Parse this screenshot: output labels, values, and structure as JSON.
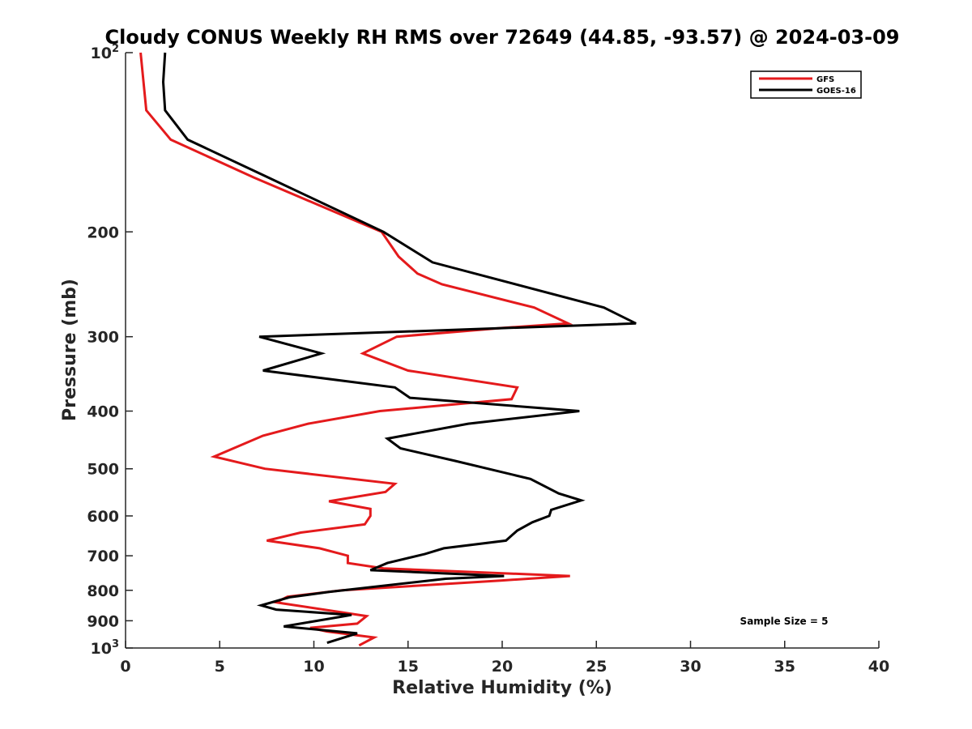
{
  "chart_data": {
    "type": "line",
    "title": "Cloudy CONUS Weekly RH RMS over 72649 (44.85, -93.57) @ 2024-03-09",
    "xlabel": "Relative Humidity (%)",
    "ylabel": "Pressure (mb)",
    "xlim": [
      0,
      40
    ],
    "ylim": [
      100,
      1000
    ],
    "y_scale": "log",
    "y_reversed": true,
    "grid": false,
    "legend_placement": "top-right",
    "x_ticks": [
      0,
      5,
      10,
      15,
      20,
      25,
      30,
      35,
      40
    ],
    "x_tick_labels": [
      "0",
      "5",
      "10",
      "15",
      "20",
      "25",
      "30",
      "35",
      "40"
    ],
    "y_ticks": [
      100,
      200,
      300,
      400,
      500,
      600,
      700,
      800,
      900,
      1000
    ],
    "y_tick_labels": [
      {
        "base": "10",
        "sup": "2"
      },
      {
        "base": "200",
        "sup": ""
      },
      {
        "base": "300",
        "sup": ""
      },
      {
        "base": "400",
        "sup": ""
      },
      {
        "base": "500",
        "sup": ""
      },
      {
        "base": "600",
        "sup": ""
      },
      {
        "base": "700",
        "sup": ""
      },
      {
        "base": "800",
        "sup": ""
      },
      {
        "base": "900",
        "sup": ""
      },
      {
        "base": "10",
        "sup": "3"
      }
    ],
    "series": [
      {
        "name": "GFS",
        "color": "#e41a1c",
        "points": [
          [
            0.8,
            100
          ],
          [
            1.1,
            125
          ],
          [
            2.4,
            140
          ],
          [
            6.8,
            162
          ],
          [
            13.6,
            200
          ],
          [
            14.5,
            220
          ],
          [
            15.5,
            235
          ],
          [
            16.8,
            245
          ],
          [
            21.7,
            268
          ],
          [
            23.5,
            285
          ],
          [
            20.0,
            290
          ],
          [
            14.4,
            300
          ],
          [
            12.6,
            320
          ],
          [
            15.0,
            342
          ],
          [
            20.8,
            365
          ],
          [
            20.5,
            382
          ],
          [
            13.5,
            400
          ],
          [
            9.7,
            420
          ],
          [
            7.3,
            440
          ],
          [
            4.7,
            477
          ],
          [
            7.4,
            500
          ],
          [
            14.3,
            530
          ],
          [
            13.8,
            547
          ],
          [
            10.8,
            567
          ],
          [
            13.0,
            584
          ],
          [
            13.0,
            600
          ],
          [
            12.7,
            620
          ],
          [
            9.3,
            640
          ],
          [
            7.5,
            660
          ],
          [
            10.3,
            680
          ],
          [
            11.8,
            700
          ],
          [
            11.8,
            720
          ],
          [
            13.7,
            735
          ],
          [
            23.6,
            757
          ],
          [
            20.0,
            770
          ],
          [
            11.5,
            800
          ],
          [
            8.6,
            820
          ],
          [
            8.0,
            838
          ],
          [
            8.4,
            842
          ],
          [
            12.8,
            884
          ],
          [
            12.3,
            910
          ],
          [
            9.8,
            925
          ],
          [
            10.7,
            938
          ],
          [
            13.2,
            960
          ],
          [
            12.4,
            990
          ]
        ]
      },
      {
        "name": "GOES-16",
        "color": "#000000",
        "points": [
          [
            2.1,
            100
          ],
          [
            2.0,
            112
          ],
          [
            2.1,
            125
          ],
          [
            3.3,
            140
          ],
          [
            7.2,
            160
          ],
          [
            13.7,
            200
          ],
          [
            16.3,
            225
          ],
          [
            25.4,
            268
          ],
          [
            27.1,
            285
          ],
          [
            7.1,
            300
          ],
          [
            10.4,
            320
          ],
          [
            7.3,
            342
          ],
          [
            14.3,
            365
          ],
          [
            15.1,
            380
          ],
          [
            24.1,
            400
          ],
          [
            18.2,
            420
          ],
          [
            13.9,
            445
          ],
          [
            14.6,
            462
          ],
          [
            17.5,
            485
          ],
          [
            21.5,
            520
          ],
          [
            23.0,
            550
          ],
          [
            24.2,
            565
          ],
          [
            22.6,
            586
          ],
          [
            22.5,
            600
          ],
          [
            21.6,
            615
          ],
          [
            20.8,
            635
          ],
          [
            20.2,
            660
          ],
          [
            16.9,
            680
          ],
          [
            15.9,
            695
          ],
          [
            13.9,
            720
          ],
          [
            13.0,
            740
          ],
          [
            20.1,
            757
          ],
          [
            17.0,
            765
          ],
          [
            10.8,
            805
          ],
          [
            8.7,
            822
          ],
          [
            7.2,
            848
          ],
          [
            8.0,
            862
          ],
          [
            12.0,
            880
          ],
          [
            8.4,
            920
          ],
          [
            12.3,
            945
          ],
          [
            10.7,
            980
          ]
        ]
      }
    ],
    "annotations": [
      {
        "text": "Sample Size = 5"
      }
    ]
  }
}
